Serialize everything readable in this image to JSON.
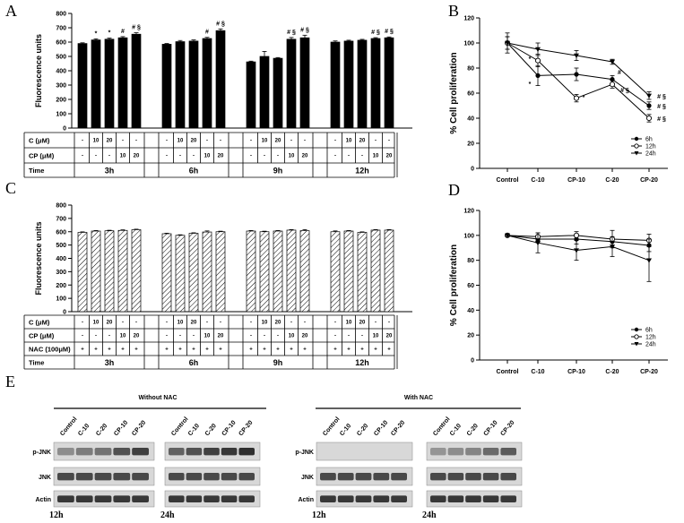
{
  "panels": {
    "A": {
      "letter": "A"
    },
    "B": {
      "letter": "B"
    },
    "C": {
      "letter": "C"
    },
    "D": {
      "letter": "D"
    },
    "E": {
      "letter": "E"
    }
  },
  "chart_data": [
    {
      "id": "A",
      "type": "bar",
      "ylabel": "Fluorescence units",
      "ylim": [
        0,
        800
      ],
      "yticks": [
        0,
        100,
        200,
        300,
        400,
        500,
        600,
        700,
        800
      ],
      "groups": [
        {
          "time": "3h",
          "values": [
            590,
            615,
            620,
            630,
            655
          ],
          "errors": [
            5,
            8,
            8,
            8,
            10
          ],
          "annotations": [
            "",
            "*",
            "*",
            "#",
            "# §"
          ]
        },
        {
          "time": "6h",
          "values": [
            585,
            603,
            607,
            625,
            680
          ],
          "errors": [
            5,
            8,
            8,
            8,
            12
          ],
          "annotations": [
            "",
            "",
            "",
            "#",
            "# §"
          ]
        },
        {
          "time": "9h",
          "values": [
            462,
            500,
            487,
            620,
            630
          ],
          "errors": [
            5,
            35,
            5,
            12,
            18
          ],
          "annotations": [
            "",
            "",
            "",
            "# §",
            "# §"
          ]
        },
        {
          "time": "12h",
          "values": [
            600,
            607,
            613,
            625,
            630
          ],
          "errors": [
            8,
            6,
            6,
            6,
            6
          ],
          "annotations": [
            "",
            "",
            "",
            "# §",
            "# §"
          ]
        }
      ],
      "table": {
        "c_label": "C (μM)",
        "cp_label": "CP (μM)",
        "time_label": "Time",
        "c_row": [
          "-",
          "10",
          "20",
          "-",
          "-"
        ],
        "cp_row": [
          "-",
          "-",
          "-",
          "10",
          "20"
        ]
      }
    },
    {
      "id": "B",
      "type": "line",
      "ylabel": "% Cell proliferation",
      "ylim": [
        0,
        120
      ],
      "yticks": [
        0,
        20,
        40,
        60,
        80,
        100,
        120
      ],
      "categories": [
        "Control",
        "C-10",
        "CP-10",
        "C-20",
        "CP-20"
      ],
      "series": [
        {
          "name": "6h",
          "marker": "circle",
          "values": [
            100,
            74,
            75,
            71,
            50
          ],
          "errors": [
            5,
            8,
            5,
            3,
            3
          ]
        },
        {
          "name": "12h",
          "marker": "open",
          "values": [
            100,
            86,
            56,
            67,
            40
          ],
          "errors": [
            5,
            5,
            3,
            3,
            3
          ]
        },
        {
          "name": "24h",
          "marker": "triangle",
          "values": [
            100,
            95,
            90,
            85,
            58
          ],
          "errors": [
            8,
            5,
            4,
            2,
            3
          ]
        }
      ],
      "annotations": [
        {
          "text": "*",
          "cat": 1,
          "y": 88
        },
        {
          "text": "*",
          "cat": 1,
          "y": 68
        },
        {
          "text": "*",
          "cat": 2,
          "y": 57
        },
        {
          "text": "#",
          "cat": 3,
          "y": 77
        },
        {
          "text": "# §",
          "cat": 3,
          "y": 63
        },
        {
          "text": "# §",
          "cat": 4,
          "y": 58
        },
        {
          "text": "# §",
          "cat": 4,
          "y": 50
        },
        {
          "text": "# §",
          "cat": 4,
          "y": 40
        }
      ]
    },
    {
      "id": "C",
      "type": "bar",
      "ylabel": "Fluorescence units",
      "ylim": [
        0,
        800
      ],
      "yticks": [
        0,
        100,
        200,
        300,
        400,
        500,
        600,
        700,
        800
      ],
      "hatched": true,
      "groups": [
        {
          "time": "3h",
          "values": [
            595,
            605,
            607,
            610,
            615
          ],
          "errors": [
            4,
            4,
            4,
            4,
            4
          ]
        },
        {
          "time": "6h",
          "values": [
            585,
            573,
            588,
            598,
            600
          ],
          "errors": [
            4,
            4,
            4,
            8,
            4
          ]
        },
        {
          "time": "9h",
          "values": [
            605,
            600,
            605,
            612,
            608
          ],
          "errors": [
            4,
            4,
            4,
            4,
            8
          ]
        },
        {
          "time": "12h",
          "values": [
            600,
            605,
            595,
            612,
            612
          ],
          "errors": [
            6,
            4,
            4,
            4,
            4
          ]
        }
      ],
      "table": {
        "c_label": "C (μM)",
        "cp_label": "CP (μM)",
        "nac_label": "NAC (100μM)",
        "time_label": "Time",
        "c_row": [
          "-",
          "10",
          "20",
          "-",
          "-"
        ],
        "cp_row": [
          "-",
          "-",
          "-",
          "10",
          "20"
        ],
        "nac_row": [
          "+",
          "+",
          "+",
          "+",
          "+"
        ]
      }
    },
    {
      "id": "D",
      "type": "line",
      "ylabel": "% Cell proliferation",
      "ylim": [
        0,
        120
      ],
      "yticks": [
        0,
        20,
        40,
        60,
        80,
        100,
        120
      ],
      "categories": [
        "Control",
        "C-10",
        "CP-10",
        "C-20",
        "CP-20"
      ],
      "series": [
        {
          "name": "6h",
          "marker": "circle",
          "values": [
            100,
            97,
            97,
            95,
            92
          ],
          "errors": [
            1,
            3,
            4,
            3,
            5
          ]
        },
        {
          "name": "12h",
          "marker": "open",
          "values": [
            100,
            99,
            100,
            97,
            96
          ],
          "errors": [
            1,
            3,
            3,
            7,
            5
          ]
        },
        {
          "name": "24h",
          "marker": "triangle",
          "values": [
            100,
            94,
            88,
            91,
            80
          ],
          "errors": [
            1,
            8,
            8,
            8,
            17
          ]
        }
      ]
    }
  ],
  "blots": {
    "without_nac_title": "Without NAC",
    "with_nac_title": "With NAC",
    "lanes": [
      "Control",
      "C-10",
      "C-20",
      "CP-10",
      "CP-20"
    ],
    "rows": [
      "p-JNK",
      "JNK",
      "Actin"
    ],
    "times": [
      "12h",
      "24h"
    ]
  }
}
